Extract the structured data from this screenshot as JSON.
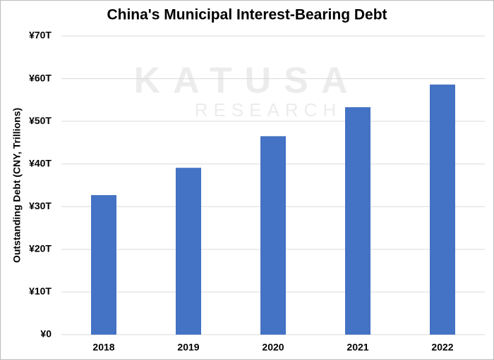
{
  "chart_data": {
    "type": "bar",
    "title": "China's Municipal Interest-Bearing Debt",
    "y_label": "Outstanding Debt (CNY, Trillions)",
    "watermark": [
      "KATUSA",
      "RESEARCH"
    ],
    "categories": [
      "2018",
      "2019",
      "2020",
      "2021",
      "2022"
    ],
    "values": [
      32.7,
      39.1,
      46.5,
      53.3,
      58.6
    ],
    "color": "#4472c4",
    "ylim": [
      0,
      70
    ],
    "yticks": [
      {
        "value": 0,
        "label": "¥0"
      },
      {
        "value": 10,
        "label": "¥10T"
      },
      {
        "value": 20,
        "label": "¥20T"
      },
      {
        "value": 30,
        "label": "¥30T"
      },
      {
        "value": 40,
        "label": "¥40T"
      },
      {
        "value": 50,
        "label": "¥50T"
      },
      {
        "value": 60,
        "label": "¥60T"
      },
      {
        "value": 70,
        "label": "¥70T"
      }
    ],
    "grid": true
  }
}
